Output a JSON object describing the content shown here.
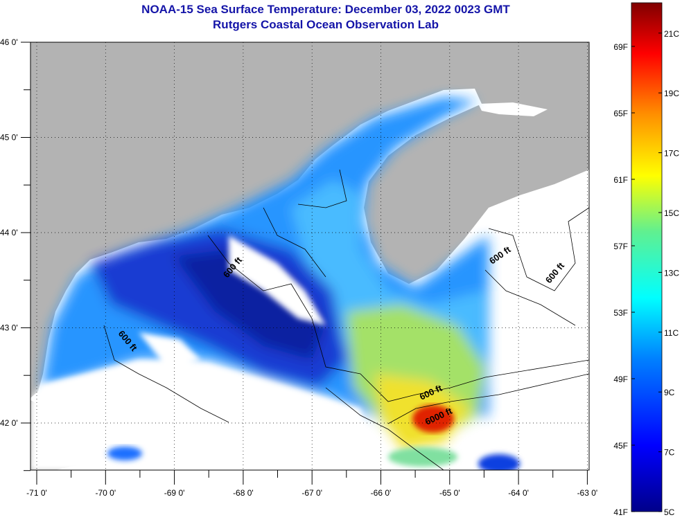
{
  "title": "NOAA-15 Sea Surface Temperature:  December 03, 2022 0023 GMT",
  "subtitle": "Rutgers Coastal Ocean Observation Lab",
  "map": {
    "lon_range": [
      -71,
      -63
    ],
    "lat_range": [
      41.5,
      46
    ],
    "lon_ticks": [
      "-71 0'",
      "-70 0'",
      "-69 0'",
      "-68 0'",
      "-67 0'",
      "-66 0'",
      "-65 0'",
      "-64 0'",
      "-63 0'"
    ],
    "lat_ticks": [
      "46 0'",
      "45 0'",
      "44 0'",
      "43 0'",
      "42 0'"
    ],
    "contour_labels": [
      "600 ft",
      "600 ft",
      "600 ft",
      "600 ft",
      "600 ft",
      "6000 ft"
    ],
    "colors": {
      "land": "#b3b3b3",
      "no_data": "#ffffff"
    }
  },
  "colorbar": {
    "celsius_labels": [
      "21C",
      "19C",
      "17C",
      "15C",
      "13C",
      "11C",
      "9C",
      "7C",
      "5C"
    ],
    "fahrenheit_labels": [
      "69F",
      "65F",
      "61F",
      "57F",
      "53F",
      "49F",
      "45F",
      "41F"
    ],
    "range_c": [
      5,
      22
    ]
  }
}
